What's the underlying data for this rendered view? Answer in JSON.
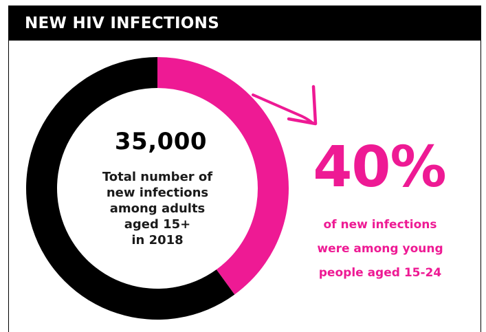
{
  "header": {
    "title": "NEW HIV INFECTIONS"
  },
  "colors": {
    "accent": "#ee1a94",
    "dark": "#000000",
    "background": "#ffffff"
  },
  "donut": {
    "total_value": "35,000",
    "total_label": "Total number of\nnew infections\namong adults\naged 15+\nin 2018"
  },
  "highlight": {
    "value": "40%",
    "label": "of new infections\nwere among young\npeople aged 15-24"
  },
  "chart_data": {
    "type": "pie",
    "donut": true,
    "slices": [
      {
        "label": "young people aged 15-24",
        "value": 40,
        "color": "#ee1a94"
      },
      {
        "label": "",
        "value": 60,
        "color": "#000000"
      }
    ],
    "total": 35000,
    "title": "NEW HIV INFECTIONS"
  },
  "icons": {
    "arrow": "arrow-icon"
  }
}
